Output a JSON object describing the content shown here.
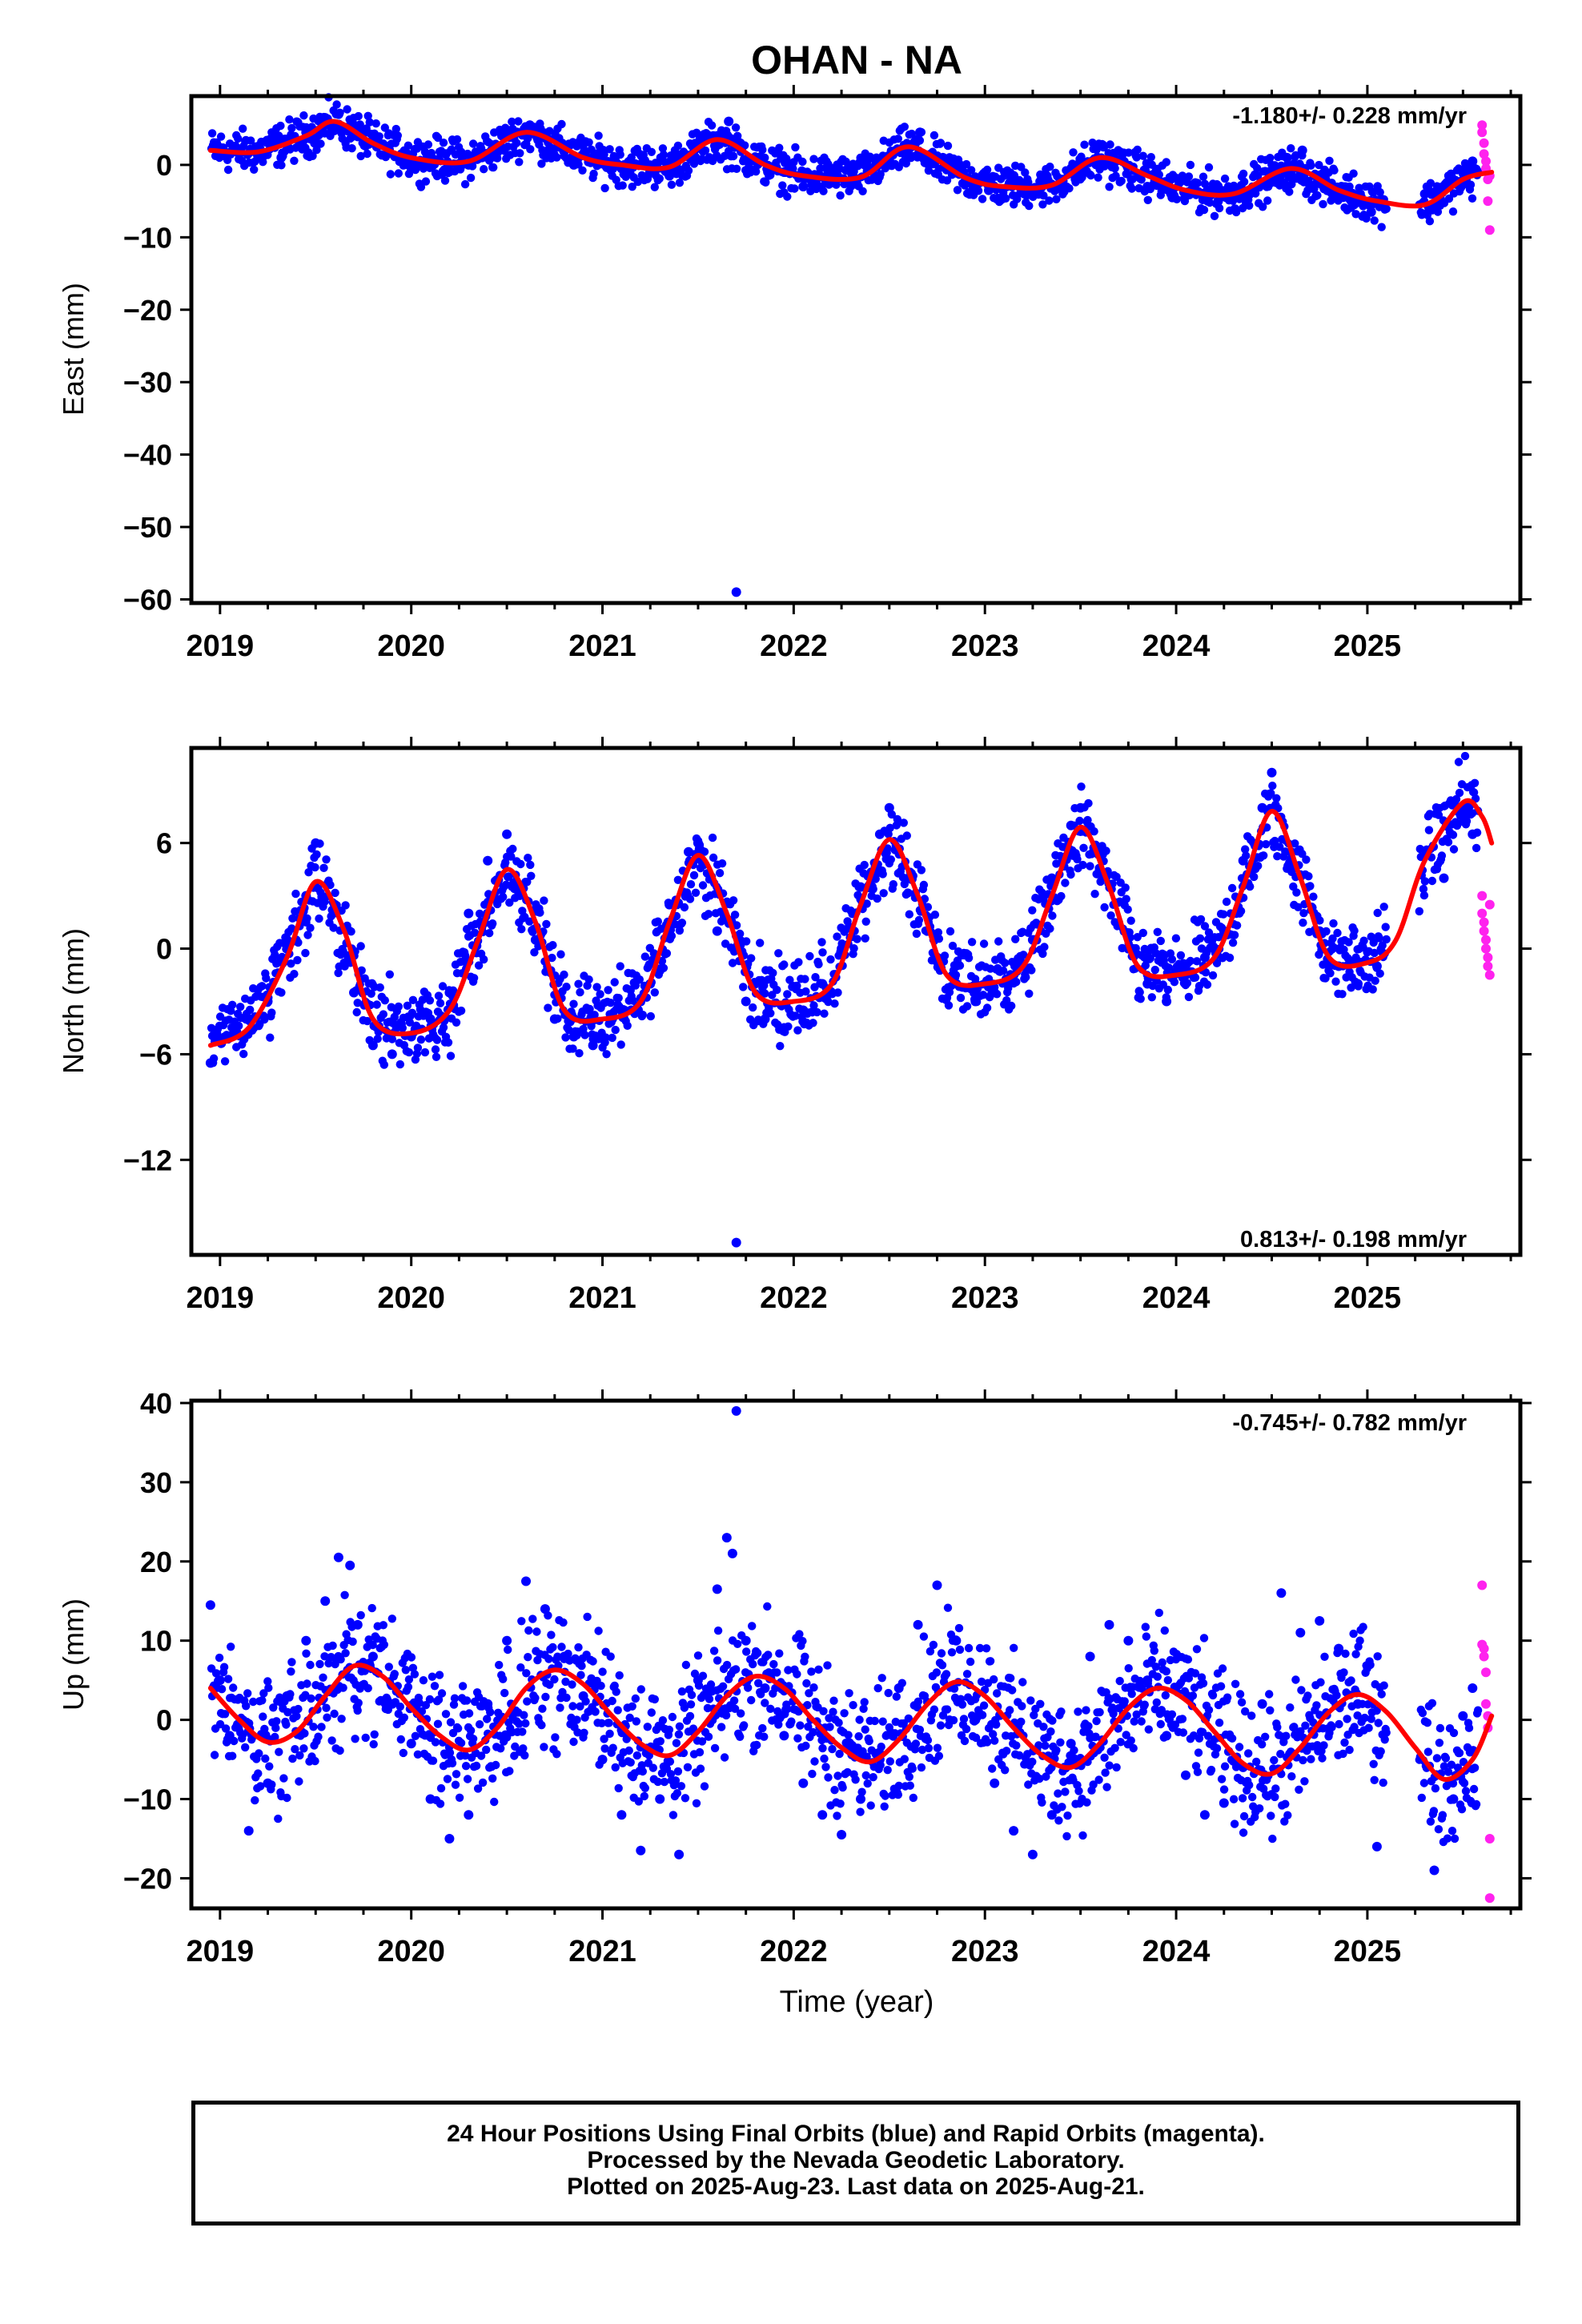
{
  "title": "OHAN - NA",
  "xlabel": "Time (year)",
  "x_ticks": [
    "2019",
    "2020",
    "2021",
    "2022",
    "2023",
    "2024",
    "2025"
  ],
  "colors": {
    "final": "#0000ff",
    "rapid": "#ff22ee",
    "model": "#ff0000",
    "frame": "#000000"
  },
  "footer": {
    "line1": "24 Hour Positions Using Final Orbits (blue) and Rapid Orbits (magenta).",
    "line2": "Processed by the Nevada Geodetic Laboratory.",
    "line3": "Plotted on 2025-Aug-23. Last data on 2025-Aug-21."
  },
  "chart_data": [
    {
      "type": "scatter",
      "ylabel": "East (mm)",
      "rate_text": "-1.180+/- 0.228 mm/yr",
      "xlim": [
        2018.85,
        2025.8
      ],
      "ylim": [
        -60.5,
        9.5
      ],
      "yticks": [
        0,
        -10,
        -20,
        -30,
        -40,
        -50,
        -60
      ],
      "model": {
        "x": [
          2018.95,
          2019.2,
          2019.45,
          2019.6,
          2019.8,
          2020.0,
          2020.3,
          2020.6,
          2020.9,
          2021.1,
          2021.35,
          2021.6,
          2021.85,
          2022.05,
          2022.35,
          2022.6,
          2022.9,
          2023.1,
          2023.35,
          2023.6,
          2023.85,
          2024.05,
          2024.3,
          2024.6,
          2024.85,
          2025.05,
          2025.3,
          2025.5,
          2025.65
        ],
        "y": [
          2.0,
          1.8,
          4.0,
          6.0,
          3.0,
          1.0,
          0.5,
          4.5,
          1.0,
          0.0,
          -0.3,
          3.5,
          0.0,
          -1.5,
          -1.7,
          2.5,
          -1.8,
          -3.0,
          -2.8,
          1.0,
          -1.5,
          -3.5,
          -4.0,
          -0.5,
          -3.5,
          -5.0,
          -5.5,
          -2.0,
          -1.0
        ]
      },
      "final": {
        "x": [
          2018.98,
          2019.1,
          2019.2,
          2019.32,
          2019.45,
          2019.55,
          2019.62,
          2019.7,
          2019.82,
          2019.95,
          2020.05,
          2020.18,
          2020.3,
          2020.42,
          2020.55,
          2020.62,
          2020.72,
          2020.85,
          2020.98,
          2021.1,
          2021.22,
          2021.35,
          2021.48,
          2021.58,
          2021.66,
          2021.72,
          2021.8,
          2021.95,
          2022.05,
          2022.18,
          2022.3,
          2022.45,
          2022.58,
          2022.66,
          2022.78,
          2022.9,
          2023.02,
          2023.15,
          2023.28,
          2023.4,
          2023.5,
          2023.62,
          2023.72,
          2023.85,
          2023.98,
          2024.1,
          2024.22,
          2024.35,
          2024.48,
          2024.58,
          2024.66,
          2024.78,
          2024.9,
          2025.02,
          2025.3,
          2025.45,
          2025.55,
          2021.7
        ],
        "y": [
          3.0,
          1.5,
          2.5,
          1.0,
          4.5,
          6.5,
          7.0,
          5.5,
          2.5,
          1.5,
          0.5,
          1.5,
          0.0,
          2.0,
          4.5,
          5.5,
          3.5,
          0.0,
          1.5,
          -0.5,
          0.5,
          -1.5,
          2.0,
          4.0,
          6.0,
          3.0,
          1.0,
          -1.0,
          -3.0,
          -1.0,
          -2.5,
          0.5,
          2.5,
          4.5,
          1.0,
          -2.0,
          -3.5,
          -1.5,
          -4.0,
          -2.0,
          0.5,
          2.5,
          0.5,
          -3.0,
          -4.5,
          -2.5,
          -5.0,
          -3.5,
          -1.0,
          1.0,
          2.0,
          -2.0,
          -4.5,
          -6.5,
          -4.0,
          -2.5,
          0.5,
          -59.0
        ]
      },
      "rapid": {
        "x": [
          2025.6,
          2025.6,
          2025.61,
          2025.61,
          2025.62,
          2025.62,
          2025.63,
          2025.63,
          2025.64,
          2025.64
        ],
        "y": [
          5.5,
          4.5,
          3.0,
          1.5,
          0.5,
          -0.5,
          -2.0,
          -5.0,
          -9.0,
          -1.5
        ]
      }
    },
    {
      "type": "scatter",
      "ylabel": "North (mm)",
      "rate_text": "0.813+/- 0.198 mm/yr",
      "xlim": [
        2018.85,
        2025.8
      ],
      "ylim": [
        -17.4,
        11.4
      ],
      "yticks": [
        6,
        0,
        -6,
        -12
      ],
      "model": {
        "x": [
          2018.95,
          2019.15,
          2019.35,
          2019.5,
          2019.65,
          2019.8,
          2020.0,
          2020.2,
          2020.35,
          2020.5,
          2020.65,
          2020.8,
          2021.0,
          2021.2,
          2021.35,
          2021.5,
          2021.65,
          2021.8,
          2022.0,
          2022.2,
          2022.35,
          2022.5,
          2022.65,
          2022.8,
          2023.0,
          2023.2,
          2023.35,
          2023.5,
          2023.65,
          2023.8,
          2024.0,
          2024.2,
          2024.35,
          2024.5,
          2024.65,
          2024.8,
          2025.0,
          2025.15,
          2025.3,
          2025.5,
          2025.6,
          2025.65
        ],
        "y": [
          -5.5,
          -4.5,
          -0.5,
          3.8,
          1.0,
          -4.0,
          -4.8,
          -3.5,
          0.5,
          4.5,
          1.5,
          -3.5,
          -4.0,
          -3.0,
          1.5,
          5.3,
          2.0,
          -2.5,
          -3.0,
          -2.0,
          2.5,
          6.2,
          3.0,
          -1.5,
          -2.0,
          -1.0,
          3.0,
          6.9,
          3.5,
          -1.0,
          -1.5,
          -0.5,
          3.5,
          7.8,
          4.0,
          -0.5,
          -0.8,
          0.5,
          5.0,
          8.3,
          7.5,
          6.0
        ]
      },
      "final": {
        "x": [
          2018.95,
          2019.05,
          2019.15,
          2019.25,
          2019.35,
          2019.45,
          2019.5,
          2019.6,
          2019.7,
          2019.8,
          2019.9,
          2020.0,
          2020.1,
          2020.2,
          2020.3,
          2020.4,
          2020.5,
          2020.55,
          2020.65,
          2020.75,
          2020.85,
          2020.95,
          2021.05,
          2021.15,
          2021.25,
          2021.35,
          2021.45,
          2021.5,
          2021.6,
          2021.75,
          2021.85,
          2021.95,
          2022.05,
          2022.15,
          2022.25,
          2022.35,
          2022.45,
          2022.5,
          2022.6,
          2022.75,
          2022.85,
          2022.95,
          2023.05,
          2023.15,
          2023.25,
          2023.35,
          2023.45,
          2023.5,
          2023.6,
          2023.75,
          2023.85,
          2023.95,
          2024.05,
          2024.15,
          2024.25,
          2024.35,
          2024.45,
          2024.5,
          2024.6,
          2024.75,
          2024.85,
          2024.95,
          2025.05,
          2025.4,
          2025.5,
          2025.55,
          2021.7
        ],
        "y": [
          -6.5,
          -5.0,
          -4.0,
          -3.0,
          0.5,
          3.0,
          6.0,
          2.5,
          -2.5,
          -5.5,
          -6.0,
          -5.0,
          -4.0,
          -2.5,
          2.0,
          5.0,
          6.5,
          3.5,
          0.5,
          -4.0,
          -5.0,
          -5.5,
          -4.0,
          -3.5,
          -2.0,
          2.5,
          5.5,
          6.0,
          1.0,
          -3.0,
          -4.0,
          -4.5,
          -3.5,
          -2.0,
          0.0,
          3.5,
          6.5,
          8.0,
          4.0,
          -0.5,
          -2.0,
          -3.0,
          -2.5,
          -1.5,
          0.5,
          4.0,
          7.0,
          8.0,
          4.5,
          0.0,
          -2.0,
          -3.0,
          -1.5,
          -0.5,
          1.0,
          5.0,
          8.0,
          10.0,
          5.5,
          1.0,
          -1.0,
          -2.0,
          -1.0,
          4.0,
          8.0,
          6.5,
          -16.7
        ]
      },
      "rapid": {
        "x": [
          2025.6,
          2025.6,
          2025.61,
          2025.61,
          2025.62,
          2025.62,
          2025.63,
          2025.63,
          2025.64,
          2025.64
        ],
        "y": [
          3.0,
          2.0,
          1.5,
          1.0,
          0.5,
          0.0,
          -0.5,
          -1.0,
          -1.5,
          2.5
        ]
      }
    },
    {
      "type": "scatter",
      "ylabel": "Up (mm)",
      "rate_text": "-0.745+/- 0.782 mm/yr",
      "xlim": [
        2018.85,
        2025.8
      ],
      "ylim": [
        -23.8,
        40.3
      ],
      "yticks": [
        40,
        30,
        20,
        10,
        0,
        -10,
        -20
      ],
      "model": {
        "x": [
          2018.95,
          2019.1,
          2019.25,
          2019.4,
          2019.55,
          2019.7,
          2019.85,
          2020.0,
          2020.15,
          2020.3,
          2020.45,
          2020.6,
          2020.75,
          2020.9,
          2021.05,
          2021.2,
          2021.35,
          2021.5,
          2021.65,
          2021.8,
          2021.95,
          2022.1,
          2022.25,
          2022.4,
          2022.55,
          2022.7,
          2022.85,
          2023.0,
          2023.15,
          2023.3,
          2023.45,
          2023.6,
          2023.75,
          2023.9,
          2024.05,
          2024.2,
          2024.35,
          2024.5,
          2024.65,
          2024.8,
          2024.95,
          2025.1,
          2025.25,
          2025.4,
          2025.55,
          2025.65
        ],
        "y": [
          4.0,
          0.0,
          -2.8,
          -1.5,
          3.0,
          6.8,
          5.5,
          1.5,
          -2.0,
          -3.8,
          -1.0,
          4.0,
          6.3,
          4.5,
          0.5,
          -3.0,
          -4.5,
          -1.5,
          3.0,
          5.5,
          4.0,
          0.0,
          -3.5,
          -5.3,
          -2.5,
          2.0,
          4.8,
          3.0,
          -1.0,
          -4.5,
          -6.0,
          -3.0,
          1.5,
          4.0,
          2.5,
          -1.5,
          -5.5,
          -6.8,
          -3.5,
          1.0,
          3.2,
          1.0,
          -3.5,
          -7.5,
          -5.0,
          0.5
        ]
      },
      "final": {
        "x": [
          2018.95,
          2019.0,
          2019.05,
          2019.15,
          2019.25,
          2019.35,
          2019.45,
          2019.55,
          2019.62,
          2019.68,
          2019.72,
          2019.8,
          2019.9,
          2020.0,
          2020.1,
          2020.2,
          2020.3,
          2020.4,
          2020.5,
          2020.6,
          2020.7,
          2020.8,
          2020.9,
          2021.0,
          2021.1,
          2021.2,
          2021.3,
          2021.4,
          2021.5,
          2021.6,
          2021.65,
          2021.68,
          2021.75,
          2021.85,
          2021.95,
          2022.05,
          2022.15,
          2022.25,
          2022.35,
          2022.45,
          2022.55,
          2022.65,
          2022.75,
          2022.85,
          2022.95,
          2023.05,
          2023.15,
          2023.25,
          2023.35,
          2023.45,
          2023.55,
          2023.65,
          2023.75,
          2023.85,
          2023.95,
          2024.05,
          2024.15,
          2024.25,
          2024.35,
          2024.45,
          2024.55,
          2024.65,
          2024.75,
          2024.85,
          2024.95,
          2025.05,
          2025.35,
          2025.45,
          2025.5,
          2025.55,
          2021.7
        ],
        "y": [
          14.5,
          5.0,
          -2.0,
          -14.0,
          -8.0,
          3.0,
          10.0,
          15.0,
          20.5,
          19.5,
          12.0,
          8.0,
          2.0,
          -3.0,
          -10.0,
          -15.0,
          -12.0,
          2.0,
          10.0,
          17.5,
          14.0,
          8.0,
          3.0,
          -5.0,
          -12.0,
          -16.5,
          -10.0,
          -17.0,
          5.0,
          16.5,
          23.0,
          21.0,
          10.0,
          4.0,
          -2.0,
          -8.0,
          -12.0,
          -14.5,
          -10.0,
          -5.0,
          4.0,
          12.0,
          17.0,
          10.0,
          0.0,
          -8.0,
          -14.0,
          -17.0,
          -12.0,
          -3.0,
          8.0,
          12.0,
          10.0,
          5.0,
          -2.0,
          -7.0,
          -12.0,
          -10.5,
          -6.0,
          2.0,
          16.0,
          11.0,
          12.5,
          9.0,
          2.0,
          -16.0,
          -19.0,
          -10.0,
          0.5,
          4.0,
          39.0
        ]
      },
      "rapid": {
        "x": [
          2025.6,
          2025.6,
          2025.61,
          2025.61,
          2025.62,
          2025.62,
          2025.63,
          2025.63,
          2025.64,
          2025.64
        ],
        "y": [
          17.0,
          9.5,
          9.0,
          8.0,
          6.0,
          2.0,
          0.5,
          -1.0,
          -15.0,
          -22.5
        ]
      }
    }
  ]
}
